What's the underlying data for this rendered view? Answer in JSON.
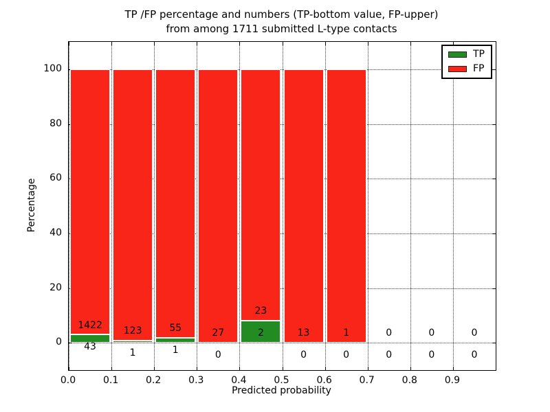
{
  "figure": {
    "title_line1": "TP /FP percentage and numbers (TP-bottom value, FP-upper)",
    "title_line2": "from among 1711 submitted L-type contacts"
  },
  "chart_data": {
    "type": "bar",
    "stacked": true,
    "stack_mode": "percentage",
    "title": "TP /FP percentage and numbers (TP-bottom value, FP-upper) from among 1711 submitted L-type contacts",
    "xlabel": "Predicted probability",
    "ylabel": "Percentage",
    "total_contacts": 1711,
    "xlim": [
      0.0,
      1.0
    ],
    "ylim": [
      -10,
      110
    ],
    "xticks": [
      0.0,
      0.1,
      0.2,
      0.3,
      0.4,
      0.5,
      0.6,
      0.7,
      0.8,
      0.9
    ],
    "xtick_labels": [
      "0.0",
      "0.1",
      "0.2",
      "0.3",
      "0.4",
      "0.5",
      "0.6",
      "0.7",
      "0.8",
      "0.9"
    ],
    "yticks": [
      0,
      20,
      40,
      60,
      80,
      100
    ],
    "ytick_labels": [
      "0",
      "20",
      "40",
      "60",
      "80",
      "100"
    ],
    "grid": "dotted",
    "legend": {
      "position": "upper right",
      "entries": [
        {
          "label": "TP",
          "color": "#228b22"
        },
        {
          "label": "FP",
          "color": "#fa2519"
        }
      ]
    },
    "label_offsets": {
      "fp_label_pct_above_tp_top": 3.5,
      "tp_label_pct_below_baseline_from_tp_top": -4.5
    },
    "bins": [
      {
        "x0": 0.0,
        "x1": 0.1,
        "tp": 43,
        "fp": 1422
      },
      {
        "x0": 0.1,
        "x1": 0.2,
        "tp": 1,
        "fp": 123
      },
      {
        "x0": 0.2,
        "x1": 0.3,
        "tp": 1,
        "fp": 55
      },
      {
        "x0": 0.3,
        "x1": 0.4,
        "tp": 0,
        "fp": 27
      },
      {
        "x0": 0.4,
        "x1": 0.5,
        "tp": 2,
        "fp": 23
      },
      {
        "x0": 0.5,
        "x1": 0.6,
        "tp": 0,
        "fp": 13
      },
      {
        "x0": 0.6,
        "x1": 0.7,
        "tp": 0,
        "fp": 1
      },
      {
        "x0": 0.7,
        "x1": 0.8,
        "tp": 0,
        "fp": 0
      },
      {
        "x0": 0.8,
        "x1": 0.9,
        "tp": 0,
        "fp": 0
      },
      {
        "x0": 0.9,
        "x1": 1.0,
        "tp": 0,
        "fp": 0
      }
    ]
  }
}
